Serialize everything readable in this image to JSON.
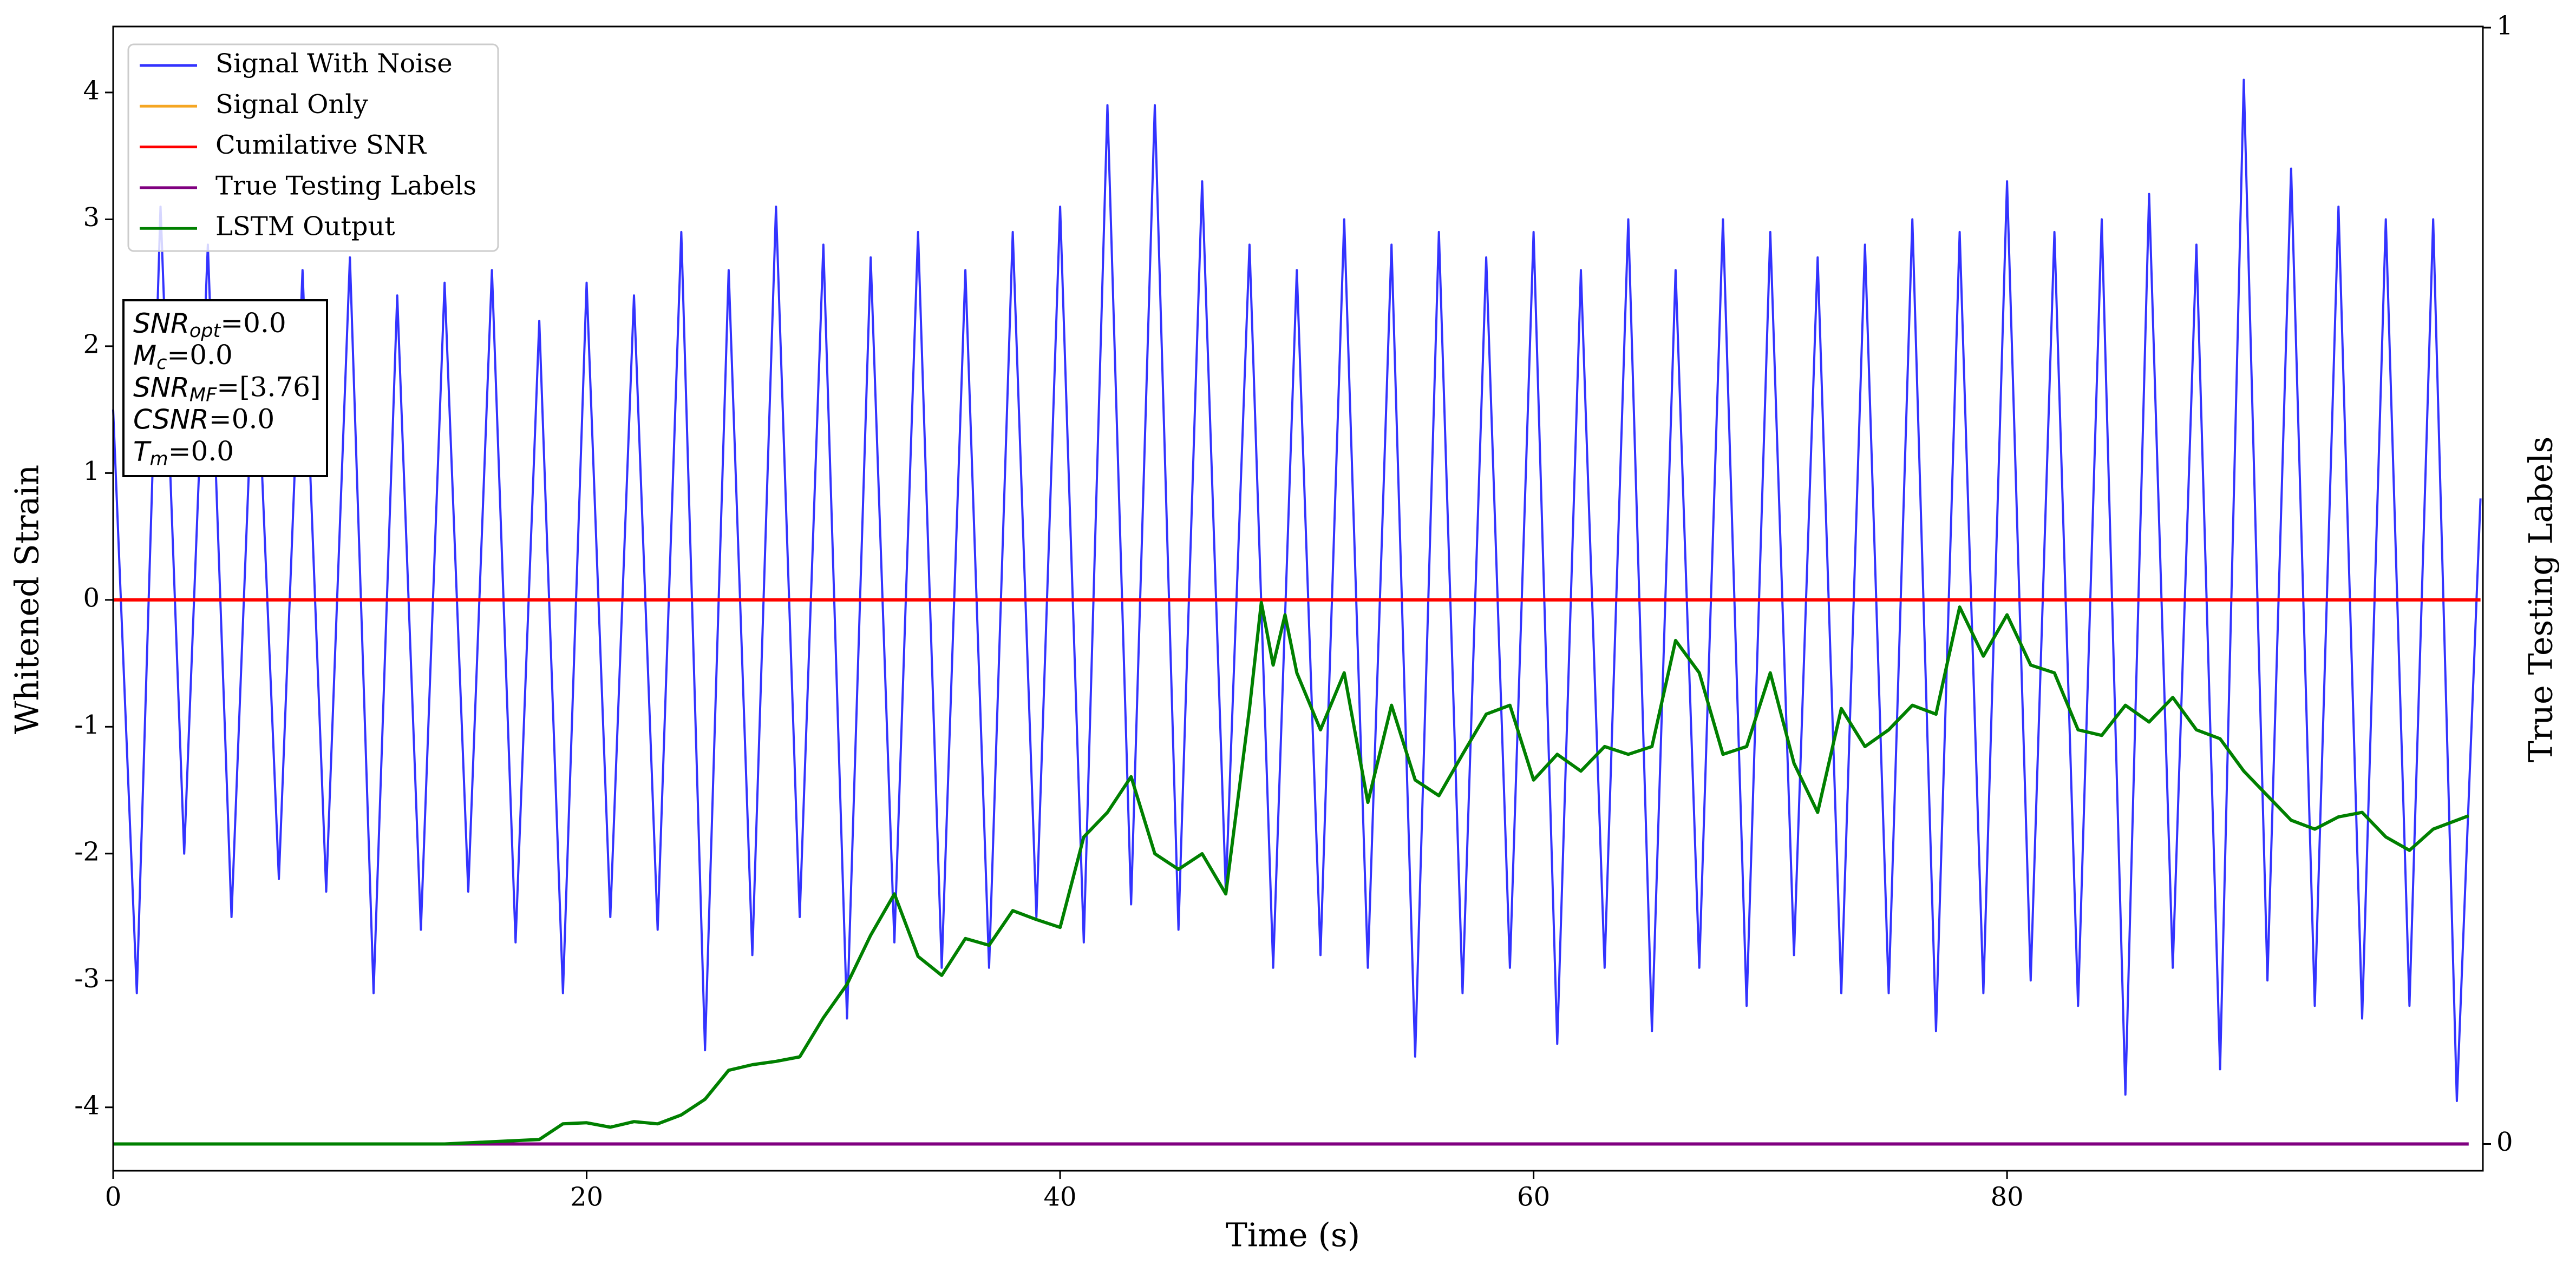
{
  "chart_data": {
    "type": "line",
    "xlabel": "Time (s)",
    "ylabel": "Whitened Strain",
    "y2label": "True Testing Labels",
    "xlim": [
      0,
      100.1
    ],
    "xticks": [
      0,
      20,
      40,
      60,
      80
    ],
    "ylim": [
      -4.5,
      4.52
    ],
    "yticks": [
      -4,
      -3,
      -2,
      -1,
      0,
      1,
      2,
      3,
      4
    ],
    "y2lim": [
      -0.024,
      1.001
    ],
    "y2ticks": [
      0,
      1
    ],
    "legend": "upper left",
    "series": [
      {
        "name": "Signal With Noise",
        "color": "#3333ff",
        "x": [
          0,
          1,
          2,
          3,
          4,
          5,
          6,
          7,
          8,
          9,
          10,
          11,
          12,
          13,
          14,
          15,
          16,
          17,
          18,
          19,
          20,
          21,
          22,
          23,
          24,
          25,
          26,
          27,
          28,
          29,
          30,
          31,
          32,
          33,
          34,
          35,
          36,
          37,
          38,
          39,
          40,
          41,
          42,
          43,
          44,
          45,
          46,
          47,
          48,
          49,
          50,
          51,
          52,
          53,
          54,
          55,
          56,
          57,
          58,
          59,
          60,
          61,
          62,
          63,
          64,
          65,
          66,
          67,
          68,
          69,
          70,
          71,
          72,
          73,
          74,
          75,
          76,
          77,
          78,
          79,
          80,
          81,
          82,
          83,
          84,
          85,
          86,
          87,
          88,
          89,
          90,
          91,
          92,
          93,
          94,
          95,
          96,
          97,
          98,
          99,
          100
        ],
        "values": [
          1.5,
          -3.1,
          3.1,
          -2.0,
          2.8,
          -2.5,
          2.3,
          -2.2,
          2.6,
          -2.3,
          2.7,
          -3.1,
          2.4,
          -2.6,
          2.5,
          -2.3,
          2.6,
          -2.7,
          2.2,
          -3.1,
          2.5,
          -2.5,
          2.4,
          -2.6,
          2.9,
          -3.55,
          2.6,
          -2.8,
          3.1,
          -2.5,
          2.8,
          -3.3,
          2.7,
          -2.7,
          2.9,
          -2.9,
          2.6,
          -2.9,
          2.9,
          -2.5,
          3.1,
          -2.7,
          3.9,
          -2.4,
          3.9,
          -2.6,
          3.3,
          -2.3,
          2.8,
          -2.9,
          2.6,
          -2.8,
          3.0,
          -2.9,
          2.8,
          -3.6,
          2.9,
          -3.1,
          2.7,
          -2.9,
          2.9,
          -3.5,
          2.6,
          -2.9,
          3.0,
          -3.4,
          2.6,
          -2.9,
          3.0,
          -3.2,
          2.9,
          -2.8,
          2.7,
          -3.1,
          2.8,
          -3.1,
          3.0,
          -3.4,
          2.9,
          -3.1,
          3.3,
          -3.0,
          2.9,
          -3.2,
          3.0,
          -3.9,
          3.2,
          -2.9,
          2.8,
          -3.7,
          4.1,
          -3.0,
          3.4,
          -3.2,
          3.1,
          -3.3,
          3.0,
          -3.2,
          3.0,
          -3.95,
          0.8
        ]
      },
      {
        "name": "Signal Only",
        "color": "#f5a623",
        "x": [
          0,
          100
        ],
        "values": [
          0,
          0
        ]
      },
      {
        "name": "Cumilative SNR",
        "color": "#ff0000",
        "x": [
          0,
          100
        ],
        "values": [
          0,
          0
        ]
      },
      {
        "name": "True Testing Labels",
        "color": "#800080",
        "axis": "y2",
        "x": [
          0,
          99.5
        ],
        "values": [
          0,
          0
        ]
      },
      {
        "name": "LSTM Output",
        "color": "#008000",
        "axis": "y2",
        "x": [
          0,
          5,
          10,
          14,
          16,
          18,
          19,
          20,
          21,
          22,
          23,
          24,
          25,
          26,
          27,
          28,
          29,
          30,
          31,
          32,
          33,
          34,
          35,
          36,
          37,
          38,
          39,
          40,
          41,
          42,
          43,
          44,
          45,
          46,
          47,
          48,
          48.5,
          49,
          49.5,
          50,
          51,
          52,
          53,
          54,
          55,
          56,
          57,
          58,
          59,
          60,
          61,
          62,
          63,
          64,
          65,
          66,
          67,
          68,
          69,
          70,
          71,
          72,
          73,
          74,
          75,
          76,
          77,
          78,
          79,
          80,
          81,
          82,
          83,
          84,
          85,
          86,
          87,
          88,
          89,
          90,
          91,
          92,
          93,
          94,
          95,
          96,
          97,
          98,
          99,
          99.5
        ],
        "values": [
          0,
          0,
          0,
          0,
          0.002,
          0.004,
          0.018,
          0.019,
          0.015,
          0.02,
          0.018,
          0.026,
          0.04,
          0.066,
          0.071,
          0.074,
          0.078,
          0.113,
          0.143,
          0.187,
          0.224,
          0.168,
          0.151,
          0.184,
          0.178,
          0.209,
          0.201,
          0.194,
          0.275,
          0.297,
          0.329,
          0.26,
          0.246,
          0.26,
          0.224,
          0.39,
          0.485,
          0.429,
          0.474,
          0.422,
          0.371,
          0.422,
          0.306,
          0.393,
          0.326,
          0.312,
          0.349,
          0.385,
          0.393,
          0.326,
          0.349,
          0.334,
          0.356,
          0.349,
          0.356,
          0.451,
          0.422,
          0.349,
          0.356,
          0.422,
          0.341,
          0.297,
          0.39,
          0.356,
          0.371,
          0.393,
          0.385,
          0.481,
          0.437,
          0.474,
          0.429,
          0.422,
          0.371,
          0.366,
          0.393,
          0.378,
          0.4,
          0.371,
          0.363,
          0.334,
          0.312,
          0.29,
          0.282,
          0.293,
          0.297,
          0.275,
          0.263,
          0.282,
          0.29,
          0.294
        ]
      }
    ],
    "annotation": [
      {
        "symbol": "SNR",
        "subscript": "opt",
        "text": "=0.0"
      },
      {
        "symbol": "M",
        "subscript": "c",
        "text": "=0.0"
      },
      {
        "symbol": "SNR",
        "subscript": "MF",
        "text": "=[3.76]"
      },
      {
        "symbol": "CSNR",
        "text": "=0.0"
      },
      {
        "symbol": "T",
        "subscript": "m",
        "text": "=0.0"
      }
    ]
  }
}
